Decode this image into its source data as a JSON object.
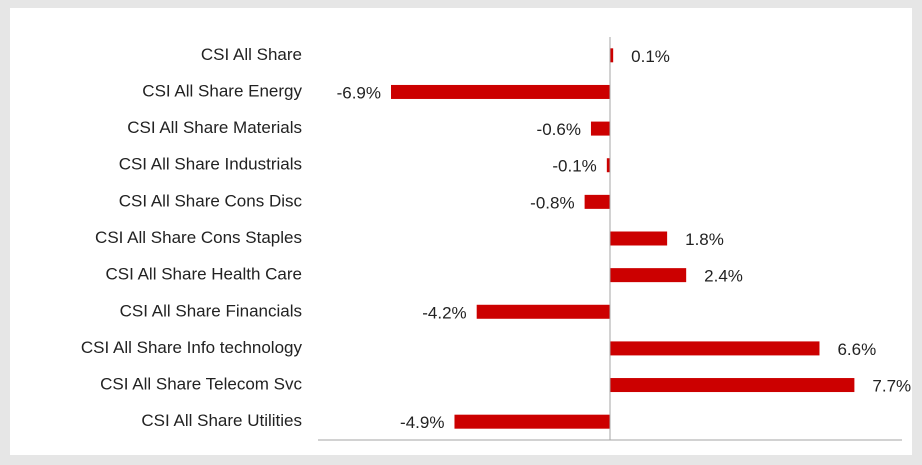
{
  "chart_data": {
    "type": "bar",
    "orientation": "horizontal",
    "categories": [
      "CSI All Share",
      "CSI All Share Energy",
      "CSI All Share Materials",
      "CSI All Share Industrials",
      "CSI All Share Cons Disc",
      "CSI All Share Cons Staples",
      "CSI All Share Health Care",
      "CSI All Share Financials",
      "CSI All Share Info technology",
      "CSI All Share Telecom Svc",
      "CSI All Share Utilities"
    ],
    "values": [
      0.1,
      -6.9,
      -0.6,
      -0.1,
      -0.8,
      1.8,
      2.4,
      -4.2,
      6.6,
      7.7,
      -4.9
    ],
    "value_labels": [
      "0.1%",
      "-6.9%",
      "-0.6%",
      "-0.1%",
      "-0.8%",
      "1.8%",
      "2.4%",
      "-4.2%",
      "6.6%",
      "7.7%",
      "-4.9%"
    ],
    "color": "#cc0000",
    "xlim": [
      -9.2,
      9.2
    ]
  }
}
